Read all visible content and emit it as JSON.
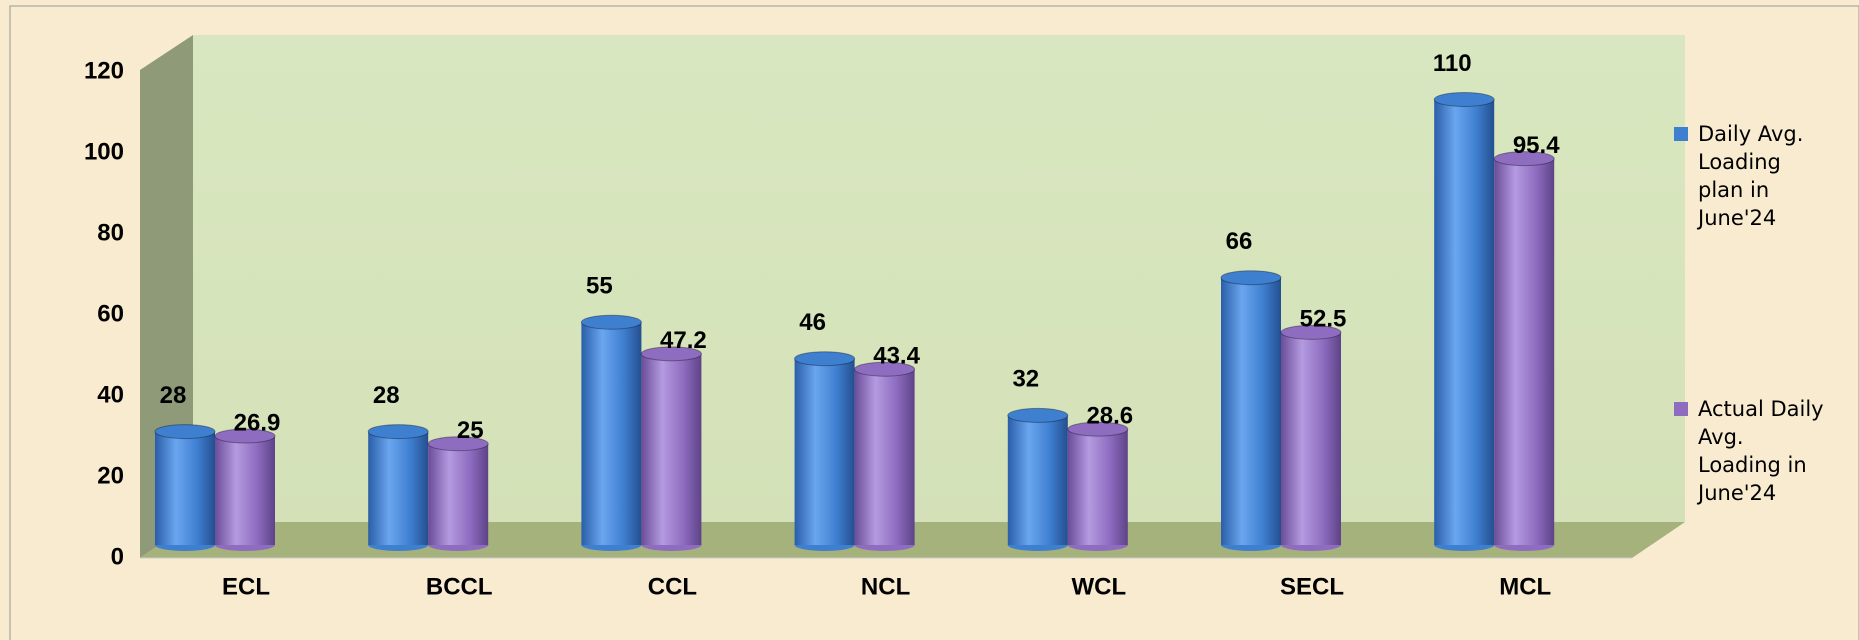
{
  "chart_data": {
    "type": "bar",
    "categories": [
      "ECL",
      "BCCL",
      "CCL",
      "NCL",
      "WCL",
      "SECL",
      "MCL"
    ],
    "series": [
      {
        "name": "Daily Avg. Loading plan in June'24",
        "color": "#3f7fd0",
        "values": [
          28,
          28,
          55,
          46,
          32,
          66,
          110
        ]
      },
      {
        "name": "Actual Daily Avg. Loading in June'24",
        "color": "#8e6cc0",
        "values": [
          26.9,
          25,
          47.2,
          43.4,
          28.6,
          52.5,
          95.4
        ]
      }
    ],
    "ylim": [
      0,
      120
    ],
    "yticks": [
      0,
      20,
      40,
      60,
      80,
      100,
      120
    ],
    "legend": "right",
    "grid": false
  }
}
